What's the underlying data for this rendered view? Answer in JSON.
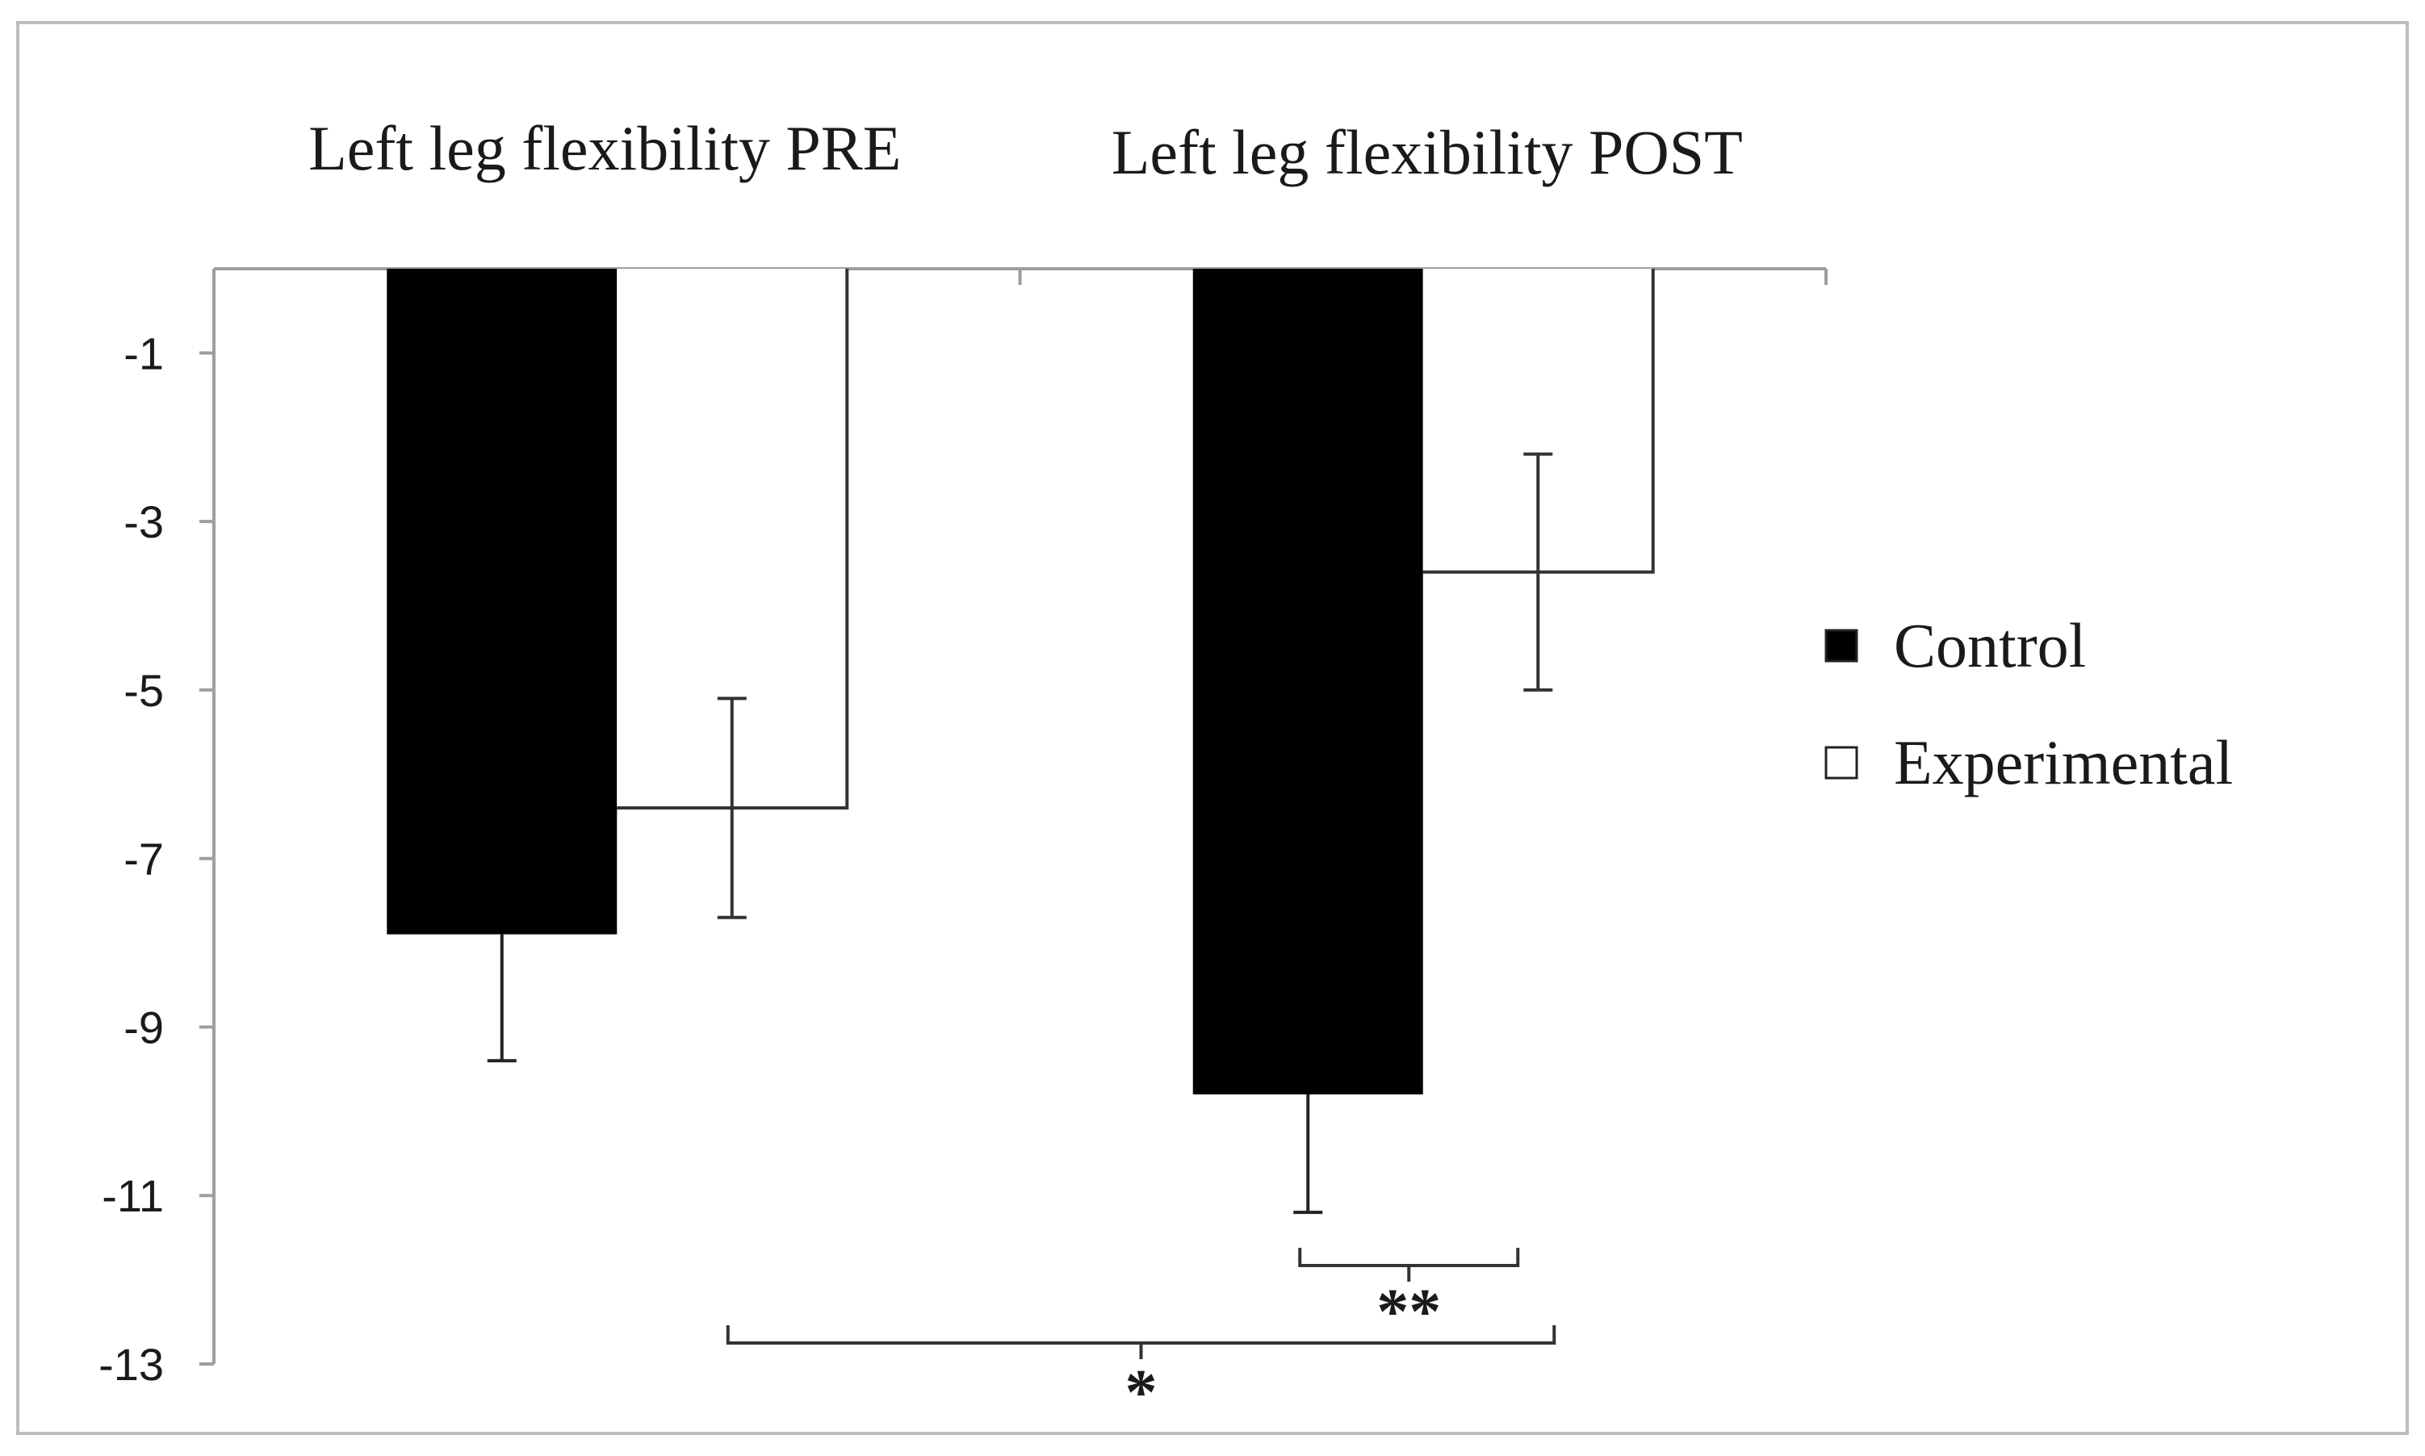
{
  "chart_data": {
    "type": "bar",
    "title": "",
    "xlabel": "",
    "ylabel": "",
    "categories": [
      "Left leg flexibility PRE",
      "Left leg flexibility POST"
    ],
    "x_axis_position": "top",
    "ylim": [
      -13,
      0
    ],
    "yticks": [
      -1,
      -3,
      -5,
      -7,
      -9,
      -11,
      -13
    ],
    "series": [
      {
        "name": "Control",
        "values": [
          -7.9,
          -9.8
        ],
        "errors": [
          1.5,
          1.4
        ],
        "color": "#000000"
      },
      {
        "name": "Experimental",
        "values": [
          -6.4,
          -3.6
        ],
        "errors": [
          1.3,
          1.4
        ],
        "color": "#ffffff"
      }
    ],
    "legend": {
      "position": "right",
      "entries": [
        "Control",
        "Experimental"
      ]
    },
    "annotations": [
      {
        "label": "**",
        "from": "Control POST",
        "to": "Experimental POST"
      },
      {
        "label": "*",
        "from": "Experimental PRE",
        "to": "Experimental POST"
      }
    ],
    "grid": false
  }
}
